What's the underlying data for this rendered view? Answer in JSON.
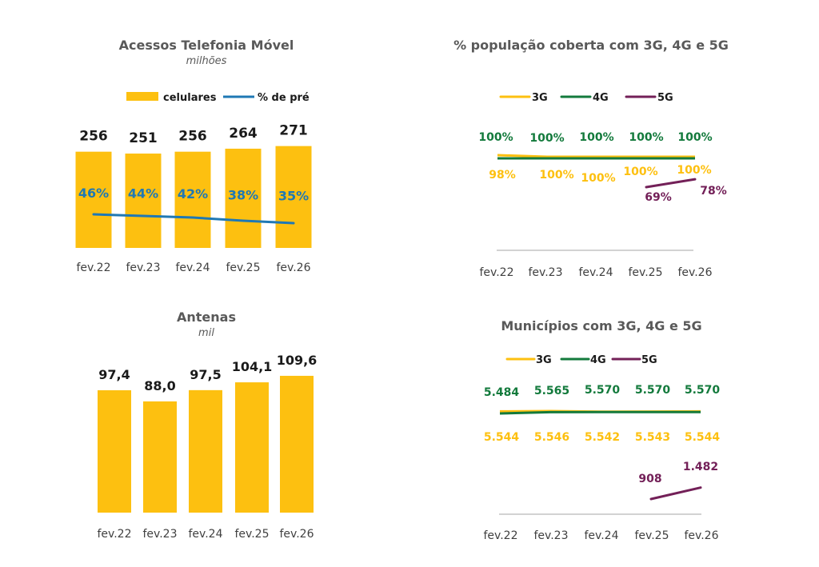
{
  "colors": {
    "yellow": "#FDC010",
    "blue": "#1F78B4",
    "green": "#137A3C",
    "purple": "#732058",
    "title": "#595959",
    "axis": "#A6A6A6",
    "label_dark": "#1A1A1A",
    "tick": "#404040"
  },
  "chart_data": [
    {
      "id": "acessos",
      "type": "bar",
      "title": "Acessos Telefonia Móvel",
      "subtitle": "milhões",
      "categories": [
        "fev.22",
        "fev.23",
        "fev.24",
        "fev.25",
        "fev.26"
      ],
      "legend": [
        "celulares",
        "% de pré"
      ],
      "legend_position": "top-right",
      "series": [
        {
          "name": "celulares",
          "type": "bar",
          "values": [
            256,
            251,
            256,
            264,
            271
          ],
          "labels": [
            "256",
            "251",
            "256",
            "264",
            "271"
          ]
        },
        {
          "name": "% de pré",
          "type": "line",
          "values": [
            46,
            44,
            42,
            38,
            35
          ],
          "labels": [
            "46%",
            "44%",
            "42%",
            "38%",
            "35%"
          ]
        }
      ]
    },
    {
      "id": "populacao",
      "type": "line",
      "title": "% população coberta com 3G, 4G e 5G",
      "categories": [
        "fev.22",
        "fev.23",
        "fev.24",
        "fev.25",
        "fev.26"
      ],
      "legend": [
        "3G",
        "4G",
        "5G"
      ],
      "legend_position": "top",
      "series": [
        {
          "name": "3G",
          "values": [
            98,
            100,
            100,
            100,
            100
          ],
          "labels": [
            "98%",
            "100%",
            "100%",
            "100%",
            "100%"
          ]
        },
        {
          "name": "4G",
          "values": [
            100,
            100,
            100,
            100,
            100
          ],
          "labels": [
            "100%",
            "100%",
            "100%",
            "100%",
            "100%"
          ]
        },
        {
          "name": "5G",
          "values": [
            null,
            null,
            null,
            69,
            78
          ],
          "labels": [
            "",
            "",
            "",
            "69%",
            "78%"
          ]
        }
      ]
    },
    {
      "id": "antenas",
      "type": "bar",
      "title": "Antenas",
      "subtitle": "mil",
      "categories": [
        "fev.22",
        "fev.23",
        "fev.24",
        "fev.25",
        "fev.26"
      ],
      "series": [
        {
          "name": "antenas",
          "values": [
            97.4,
            88.0,
            97.5,
            104.1,
            109.6
          ],
          "labels": [
            "97,4",
            "88,0",
            "97,5",
            "104,1",
            "109,6"
          ]
        }
      ]
    },
    {
      "id": "municipios",
      "type": "line",
      "title": "Municípios com 3G, 4G e 5G",
      "categories": [
        "fev.22",
        "fev.23",
        "fev.24",
        "fev.25",
        "fev.26"
      ],
      "legend": [
        "3G",
        "4G",
        "5G"
      ],
      "legend_position": "top",
      "series": [
        {
          "name": "3G",
          "values": [
            5544,
            5546,
            5542,
            5543,
            5544
          ],
          "labels": [
            "5.544",
            "5.546",
            "5.542",
            "5.543",
            "5.544"
          ]
        },
        {
          "name": "4G",
          "values": [
            5484,
            5565,
            5570,
            5570,
            5570
          ],
          "labels": [
            "5.484",
            "5.565",
            "5.570",
            "5.570",
            "5.570"
          ]
        },
        {
          "name": "5G",
          "values": [
            null,
            null,
            null,
            908,
            1482
          ],
          "labels": [
            "",
            "",
            "",
            "908",
            "1.482"
          ]
        }
      ]
    }
  ]
}
